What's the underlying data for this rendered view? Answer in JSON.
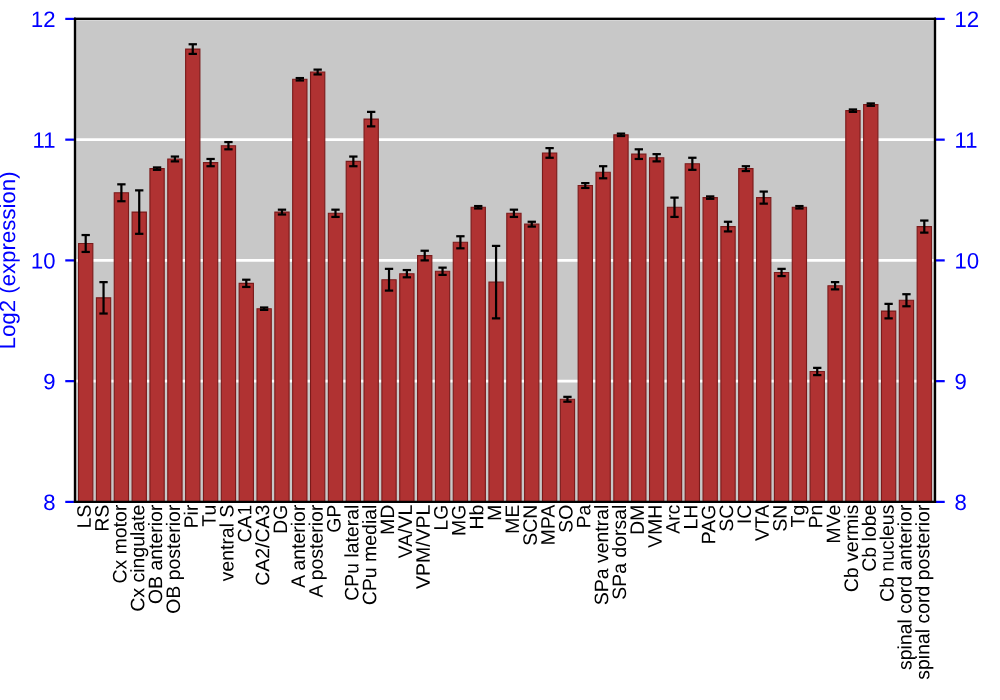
{
  "chart_data": {
    "type": "bar",
    "ylabel": "Log2 (expression)",
    "categories": [
      "LS",
      "RS",
      "Cx motor",
      "Cx cingulate",
      "OB anterior",
      "OB posterior",
      "Pir",
      "Tu",
      "ventral S",
      "CA1",
      "CA2/CA3",
      "DG",
      "A anterior",
      "A posterior",
      "GP",
      "CPu lateral",
      "CPu medial",
      "MD",
      "VA/VL",
      "VPM/VPL",
      "LG",
      "MG",
      "Hb",
      "M",
      "ME",
      "SCN",
      "MPA",
      "SO",
      "Pa",
      "SPa ventral",
      "SPa dorsal",
      "DM",
      "VMH",
      "Arc",
      "LH",
      "PAG",
      "SC",
      "IC",
      "VTA",
      "SN",
      "Tg",
      "Pn",
      "MVe",
      "Cb vermis",
      "Cb lobe",
      "Cb nucleus",
      "spinal cord anterior",
      "spinal cord posterior"
    ],
    "values": [
      10.14,
      9.69,
      10.56,
      10.4,
      10.76,
      10.84,
      11.75,
      10.81,
      10.95,
      9.81,
      9.6,
      10.4,
      11.5,
      11.56,
      10.39,
      10.82,
      11.17,
      9.84,
      9.89,
      10.04,
      9.91,
      10.15,
      10.44,
      9.82,
      10.39,
      10.3,
      10.89,
      8.85,
      10.62,
      10.73,
      11.04,
      10.88,
      10.85,
      10.44,
      10.8,
      10.52,
      10.28,
      10.76,
      10.52,
      9.9,
      10.44,
      9.08,
      9.79,
      11.24,
      11.29,
      9.58,
      9.67,
      10.28
    ],
    "errors": [
      0.07,
      0.13,
      0.07,
      0.18,
      0.01,
      0.02,
      0.04,
      0.03,
      0.03,
      0.03,
      0.01,
      0.02,
      0.01,
      0.02,
      0.03,
      0.04,
      0.06,
      0.09,
      0.03,
      0.04,
      0.03,
      0.05,
      0.01,
      0.3,
      0.03,
      0.02,
      0.04,
      0.02,
      0.02,
      0.05,
      0.01,
      0.04,
      0.03,
      0.08,
      0.05,
      0.01,
      0.04,
      0.02,
      0.05,
      0.03,
      0.01,
      0.03,
      0.03,
      0.01,
      0.01,
      0.06,
      0.05,
      0.05
    ],
    "color": "#b03232",
    "ylim": [
      8,
      12
    ],
    "yticks": [
      8,
      9,
      10,
      11,
      12
    ],
    "y2lim": [
      8,
      12
    ],
    "y2ticks": [
      8,
      9,
      10,
      11,
      12
    ],
    "grid": "y"
  }
}
